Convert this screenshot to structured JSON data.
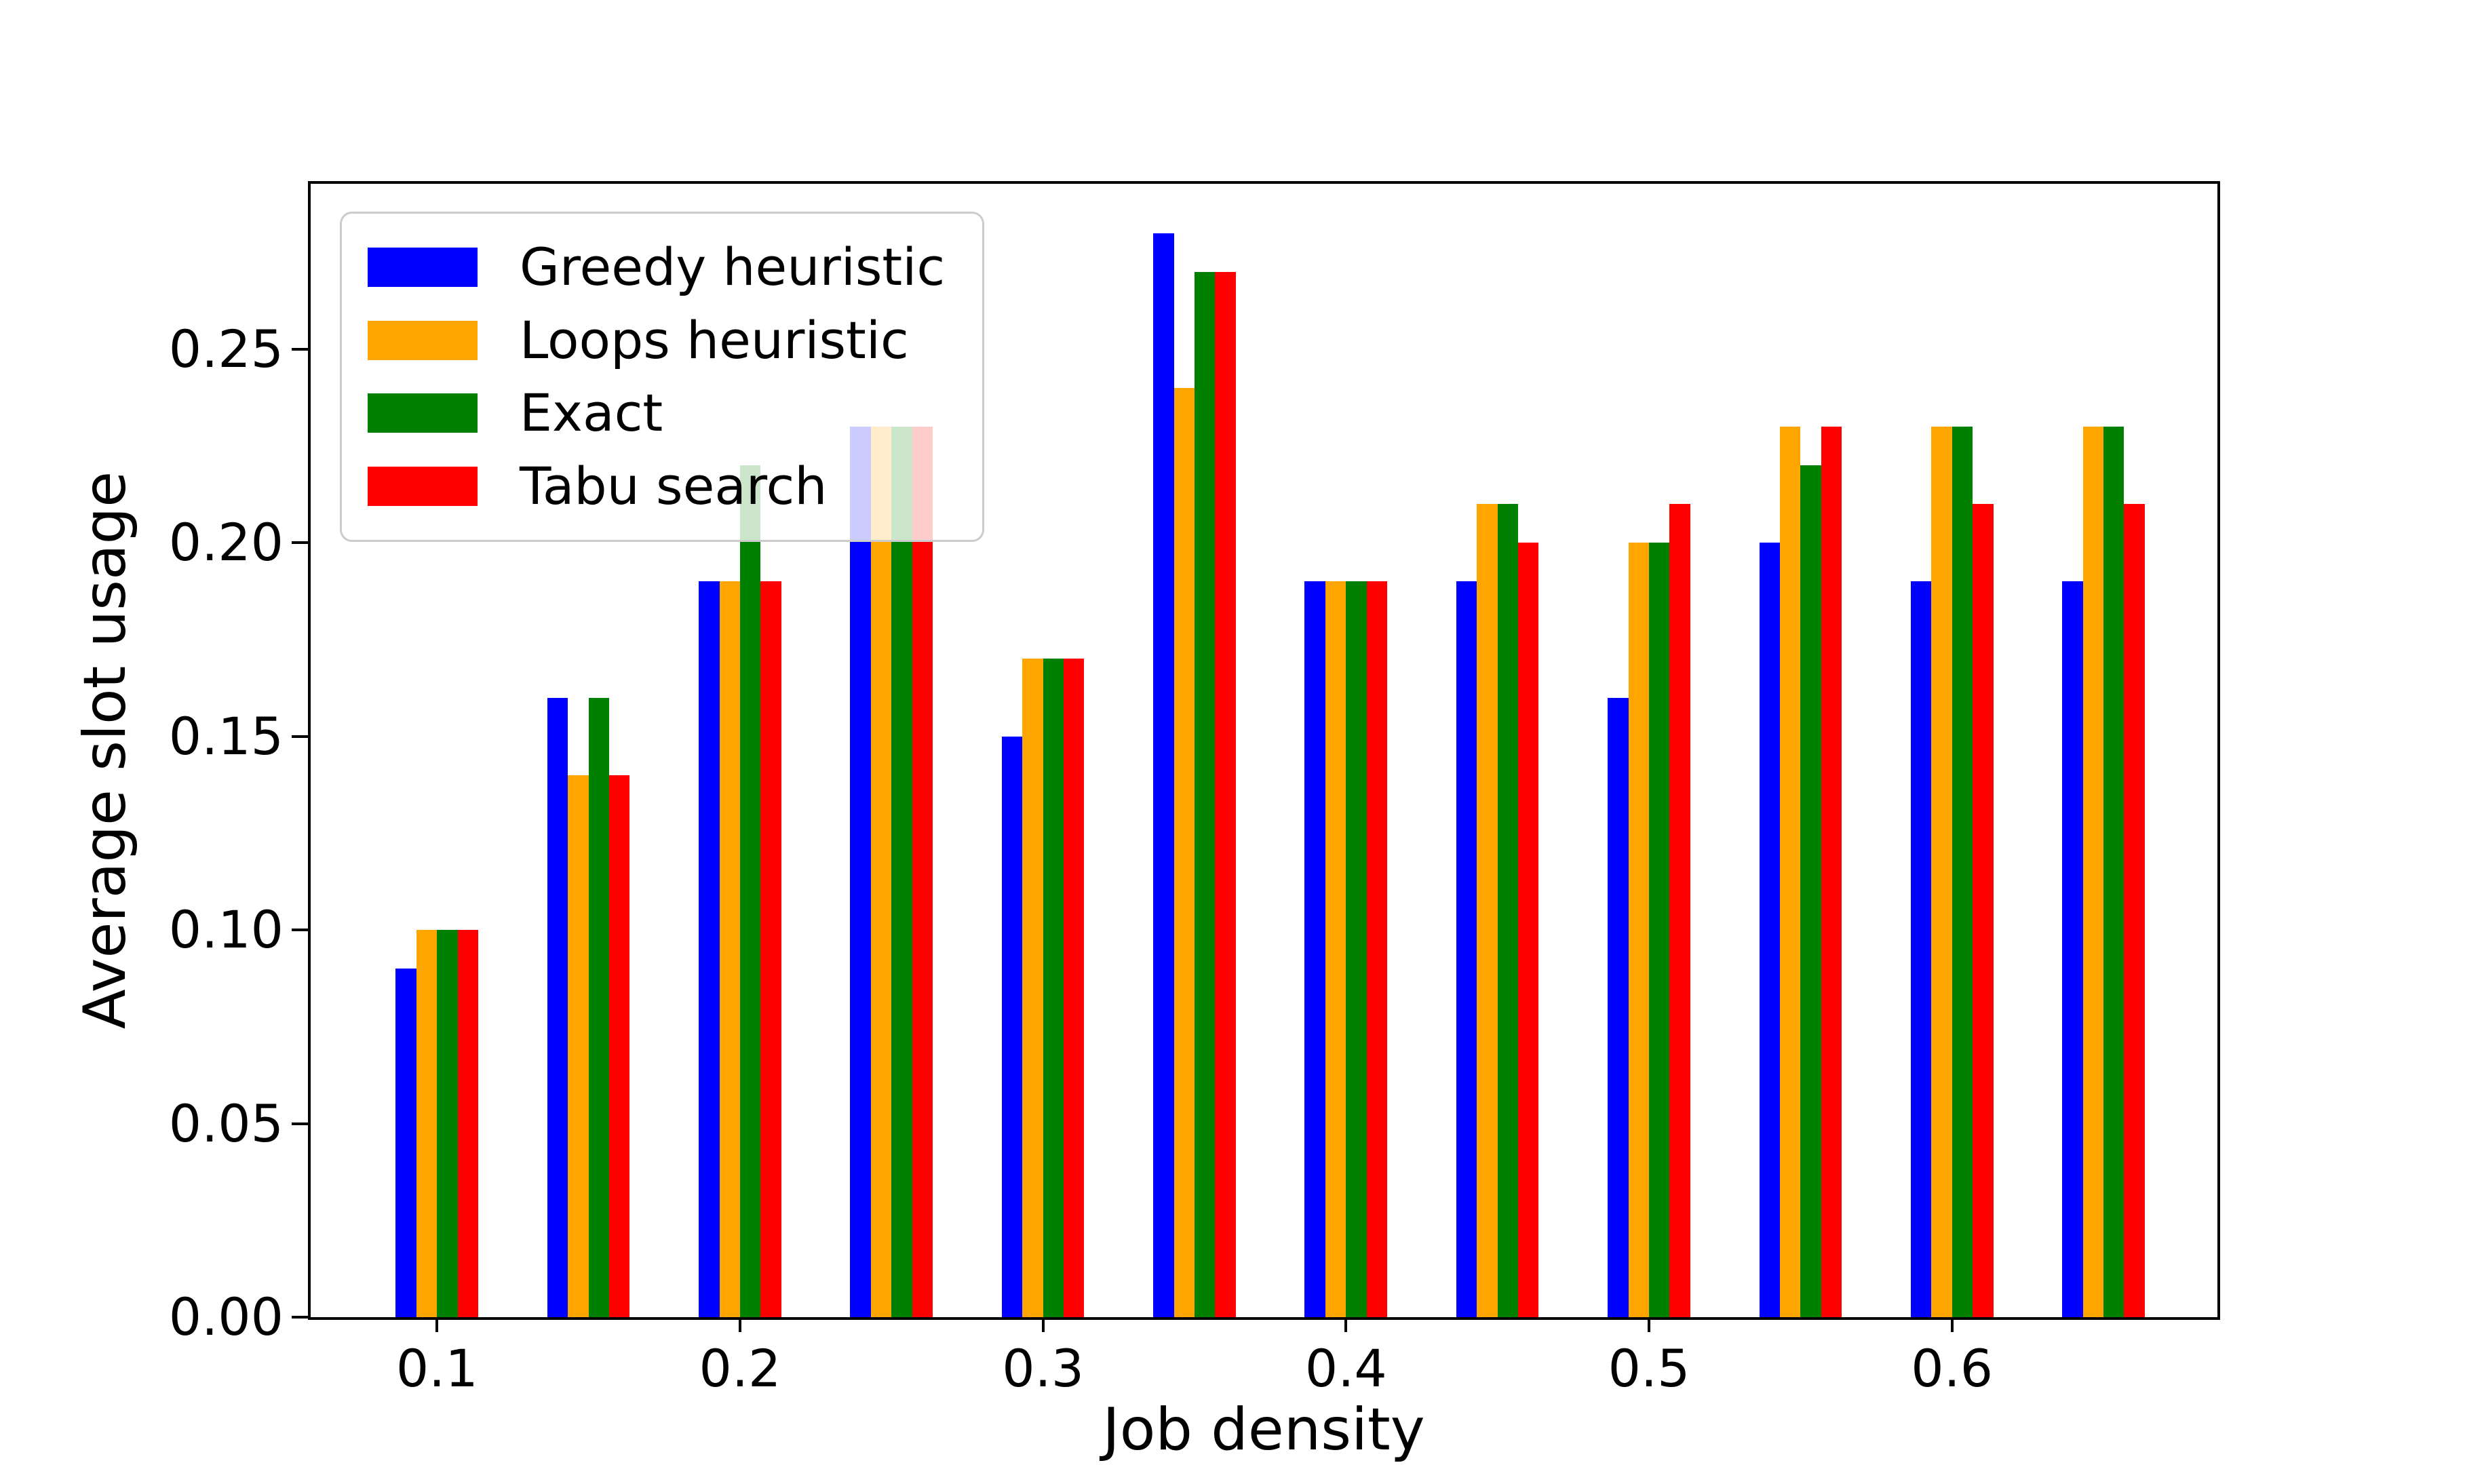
{
  "figure": {
    "background": "#ffffff",
    "text_color": "#000000",
    "axis_color": "#000000"
  },
  "chart_data": {
    "type": "bar",
    "title": "",
    "xlabel": "Job density",
    "ylabel": "Average slot usage",
    "x": [
      0.1,
      0.15,
      0.2,
      0.25,
      0.3,
      0.35,
      0.4,
      0.45,
      0.5,
      0.55,
      0.6,
      0.65
    ],
    "series": [
      {
        "name": "Greedy heuristic",
        "color": "#0000ff",
        "values": [
          0.09,
          0.16,
          0.19,
          0.23,
          0.15,
          0.28,
          0.19,
          0.19,
          0.16,
          0.2,
          0.19,
          0.19
        ]
      },
      {
        "name": "Loops heuristic",
        "color": "#ffa500",
        "values": [
          0.1,
          0.14,
          0.19,
          0.23,
          0.17,
          0.24,
          0.19,
          0.21,
          0.2,
          0.23,
          0.23,
          0.23
        ]
      },
      {
        "name": "Exact",
        "color": "#008000",
        "values": [
          0.1,
          0.16,
          0.22,
          0.23,
          0.17,
          0.27,
          0.19,
          0.21,
          0.2,
          0.22,
          0.23,
          0.23
        ]
      },
      {
        "name": "Tabu search",
        "color": "#ff0000",
        "values": [
          0.1,
          0.14,
          0.19,
          0.23,
          0.17,
          0.27,
          0.19,
          0.2,
          0.21,
          0.23,
          0.21,
          0.21
        ]
      }
    ],
    "bar_width_data_units": 0.00681,
    "xticks": {
      "values": [
        0.1,
        0.2,
        0.3,
        0.4,
        0.5,
        0.6
      ],
      "labels": [
        "0.1",
        "0.2",
        "0.3",
        "0.4",
        "0.5",
        "0.6"
      ]
    },
    "yticks": {
      "values": [
        0.0,
        0.05,
        0.1,
        0.15,
        0.2,
        0.25
      ],
      "labels": [
        "0.00",
        "0.05",
        "0.10",
        "0.15",
        "0.20",
        "0.25"
      ]
    },
    "xlim": [
      0.0583,
      0.6876
    ],
    "ylim": [
      0,
      0.2927
    ],
    "grid": false,
    "legend": {
      "position": "upper left",
      "frame_alpha": 0.8
    }
  }
}
